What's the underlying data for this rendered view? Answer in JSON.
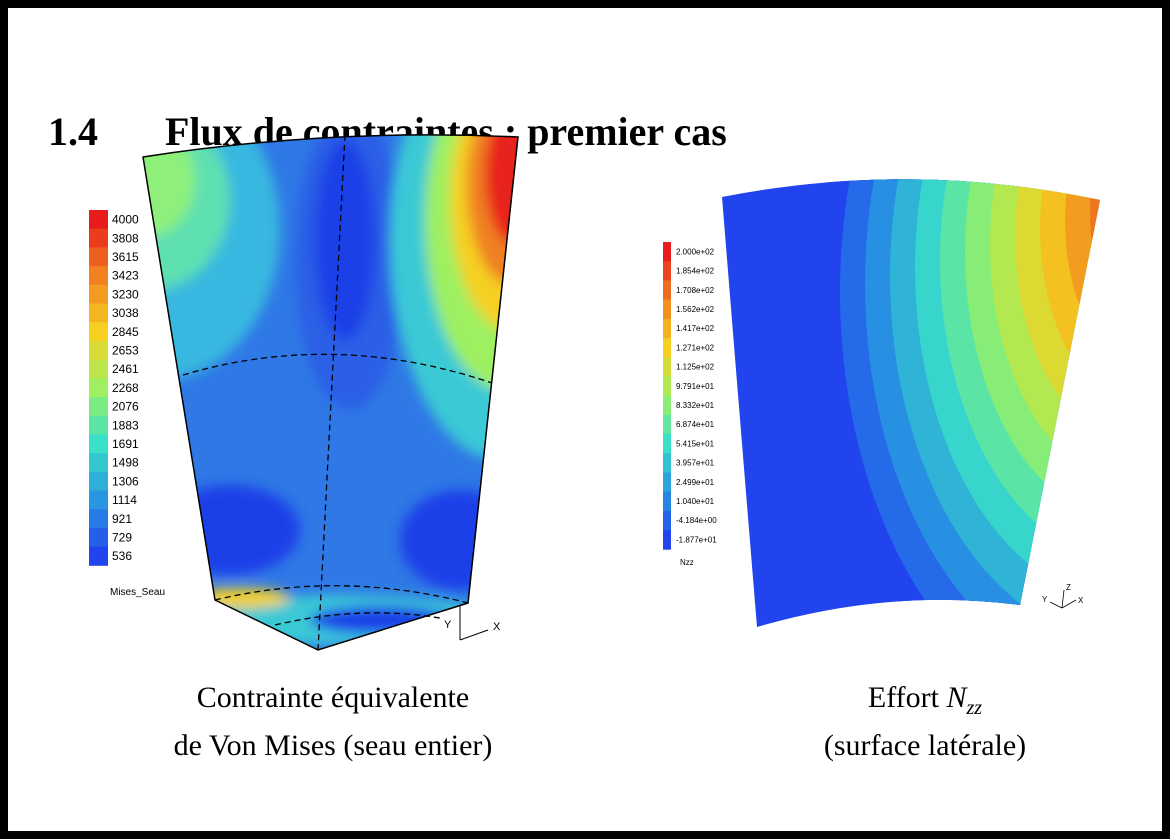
{
  "header": {
    "number": "1.4",
    "title": "Flux de contraintes : premier cas"
  },
  "left": {
    "legend": {
      "labels": [
        "4000",
        "3808",
        "3615",
        "3423",
        "3230",
        "3038",
        "2845",
        "2653",
        "2461",
        "2268",
        "2076",
        "1883",
        "1691",
        "1498",
        "1306",
        "1114",
        "921",
        "729",
        "536"
      ],
      "name": "Mises_Seau"
    },
    "axes": [
      "Y",
      "X"
    ],
    "caption": [
      "Contrainte équivalente",
      "de Von Mises (seau entier)"
    ]
  },
  "right": {
    "legend": {
      "labels": [
        "2.000e+02",
        "1.854e+02",
        "1.708e+02",
        "1.562e+02",
        "1.417e+02",
        "1.271e+02",
        "1.125e+02",
        "9.791e+01",
        "8.332e+01",
        "6.874e+01",
        "5.415e+01",
        "3.957e+01",
        "2.499e+01",
        "1.040e+01",
        "-4.184e+00",
        "-1.877e+01"
      ],
      "name": "Nzz"
    },
    "axes": [
      "Y",
      "Z",
      "X"
    ],
    "caption": {
      "prefix": "Effort",
      "symbol": "N",
      "subscript": "zz",
      "line2": "(surface latérale)"
    }
  }
}
